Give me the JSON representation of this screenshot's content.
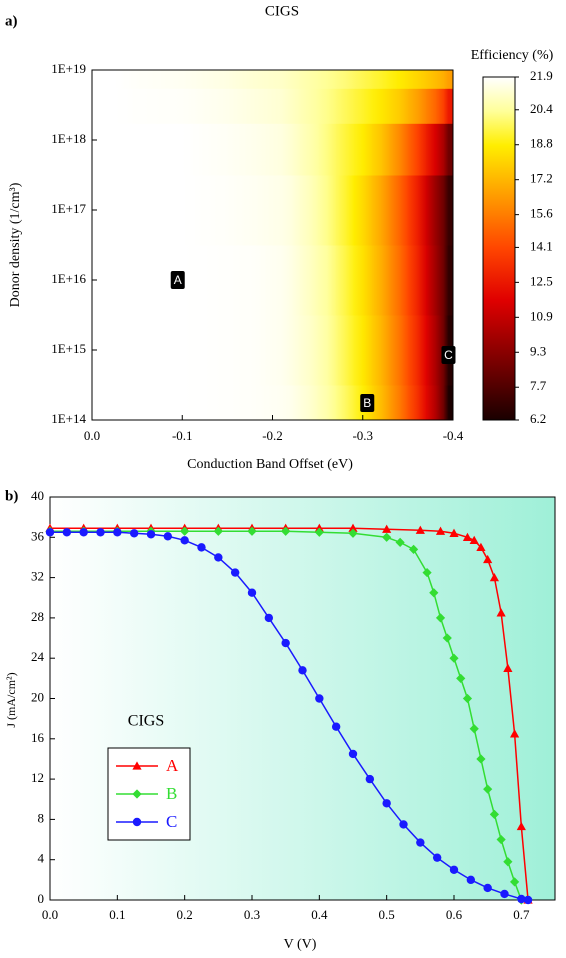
{
  "chart_data": [
    {
      "type": "contour",
      "panel": "a)",
      "title": "CIGS",
      "xlabel": "Conduction Band Offset (eV)",
      "ylabel": "Donor density (1/cm³)",
      "xlim": [
        0,
        -0.4
      ],
      "xticks": [
        {
          "value": 0,
          "label": "0.0"
        },
        -0.1,
        -0.2,
        -0.3,
        -0.4
      ],
      "ylim": [
        100000000000000.0,
        1e+19
      ],
      "log_y": true,
      "yticks": [
        {
          "value": 100000000000000.0,
          "label": "1E+14"
        },
        {
          "value": 1000000000000000.0,
          "label": "1E+15"
        },
        {
          "value": 1e+16,
          "label": "1E+16"
        },
        {
          "value": 1e+17,
          "label": "1E+17"
        },
        {
          "value": 1e+18,
          "label": "1E+18"
        },
        {
          "value": 1e+19,
          "label": "1E+19"
        }
      ],
      "x": [
        0,
        -0.1,
        -0.2,
        -0.22,
        -0.24,
        -0.26,
        -0.28,
        -0.3,
        -0.32,
        -0.34,
        -0.36,
        -0.38,
        -0.4
      ],
      "y": [
        100000000000000.0,
        1000000000000000.0,
        1e+16,
        1e+17,
        1e+18,
        3e+18,
        1e+19
      ],
      "z": [
        [
          21.9,
          21.9,
          21.8,
          21.6,
          21.2,
          20.6,
          19.8,
          18.8,
          17.4,
          15.6,
          13.4,
          10.5,
          6.2
        ],
        [
          21.9,
          21.9,
          21.8,
          21.5,
          21.1,
          20.5,
          19.6,
          18.6,
          17.2,
          15.4,
          13.2,
          10.3,
          6.5
        ],
        [
          21.9,
          21.9,
          21.8,
          21.5,
          21.0,
          20.4,
          19.5,
          18.4,
          17.0,
          15.2,
          13.0,
          10.0,
          6.8
        ],
        [
          21.9,
          21.9,
          21.7,
          21.4,
          20.9,
          20.2,
          19.3,
          18.2,
          16.8,
          15.0,
          12.8,
          9.8,
          7.0
        ],
        [
          21.9,
          21.9,
          21.6,
          21.2,
          20.7,
          20.1,
          19.4,
          18.7,
          17.6,
          16.0,
          14.0,
          11.5,
          8.5
        ],
        [
          21.9,
          21.8,
          21.4,
          21.0,
          20.6,
          20.2,
          19.7,
          19.2,
          18.6,
          17.8,
          16.6,
          15.0,
          12.5
        ],
        [
          21.9,
          21.7,
          21.2,
          20.9,
          20.6,
          20.3,
          20.0,
          19.6,
          19.2,
          18.7,
          18.1,
          17.4,
          16.5
        ]
      ],
      "colorbar_label": "Efficiency (%)",
      "clim": [
        6.2,
        21.9
      ],
      "cticks": [
        6.2,
        7.7,
        9.3,
        10.9,
        12.5,
        14.1,
        15.6,
        17.2,
        18.8,
        20.4,
        21.9
      ],
      "annotations": [
        {
          "text": "A",
          "x": -0.095,
          "y": 1e+16
        },
        {
          "text": "B",
          "x": -0.305,
          "y": 175000000000000.0
        },
        {
          "text": "C",
          "x": -0.395,
          "y": 850000000000000.0
        }
      ]
    },
    {
      "type": "line",
      "panel": "b)",
      "xlabel": "V (V)",
      "ylabel": "J (mA/cm²)",
      "xlim": [
        0,
        0.75
      ],
      "xticks": [
        {
          "value": 0,
          "label": "0.0"
        },
        0.1,
        0.2,
        0.3,
        0.4,
        0.5,
        0.6,
        0.7
      ],
      "ylim": [
        0,
        40
      ],
      "yticks": [
        0,
        4,
        8,
        12,
        16,
        20,
        24,
        28,
        32,
        36,
        40
      ],
      "legend_title": "CIGS",
      "series": [
        {
          "name": "A",
          "color": "#ff0000",
          "marker": "triangle",
          "x": [
            0,
            0.05,
            0.1,
            0.15,
            0.2,
            0.25,
            0.3,
            0.35,
            0.4,
            0.45,
            0.5,
            0.55,
            0.58,
            0.6,
            0.62,
            0.63,
            0.64,
            0.65,
            0.66,
            0.67,
            0.68,
            0.69,
            0.7,
            0.71
          ],
          "values": [
            36.9,
            36.9,
            36.9,
            36.9,
            36.9,
            36.9,
            36.9,
            36.9,
            36.9,
            36.9,
            36.8,
            36.7,
            36.6,
            36.4,
            36.0,
            35.7,
            35.0,
            33.8,
            32.0,
            28.5,
            23.0,
            16.5,
            7.3,
            0
          ]
        },
        {
          "name": "B",
          "color": "#33dd33",
          "marker": "diamond",
          "x": [
            0,
            0.05,
            0.1,
            0.15,
            0.2,
            0.25,
            0.3,
            0.35,
            0.4,
            0.45,
            0.5,
            0.52,
            0.54,
            0.56,
            0.57,
            0.58,
            0.59,
            0.6,
            0.61,
            0.62,
            0.63,
            0.64,
            0.65,
            0.66,
            0.67,
            0.68,
            0.69,
            0.7
          ],
          "values": [
            36.6,
            36.6,
            36.6,
            36.6,
            36.6,
            36.6,
            36.6,
            36.6,
            36.5,
            36.4,
            36.0,
            35.5,
            34.8,
            32.5,
            30.5,
            28.0,
            26.0,
            24.0,
            22.0,
            20.0,
            17.0,
            14.0,
            11.0,
            8.5,
            6.0,
            3.8,
            1.8,
            0
          ]
        },
        {
          "name": "C",
          "color": "#1a1aff",
          "marker": "circle",
          "x": [
            0,
            0.025,
            0.05,
            0.075,
            0.1,
            0.125,
            0.15,
            0.175,
            0.2,
            0.225,
            0.25,
            0.275,
            0.3,
            0.325,
            0.35,
            0.375,
            0.4,
            0.425,
            0.45,
            0.475,
            0.5,
            0.525,
            0.55,
            0.575,
            0.6,
            0.625,
            0.65,
            0.675,
            0.7,
            0.71
          ],
          "values": [
            36.5,
            36.5,
            36.5,
            36.5,
            36.5,
            36.4,
            36.3,
            36.1,
            35.7,
            35.0,
            34.0,
            32.5,
            30.5,
            28.0,
            25.5,
            22.8,
            20.0,
            17.2,
            14.5,
            12.0,
            9.6,
            7.5,
            5.7,
            4.2,
            3.0,
            2.0,
            1.2,
            0.6,
            0.1,
            0
          ]
        }
      ]
    }
  ]
}
